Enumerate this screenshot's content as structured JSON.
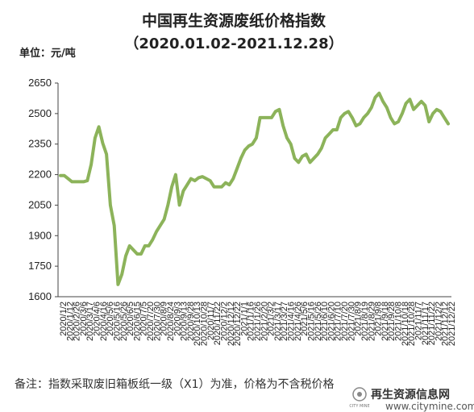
{
  "chart_data": {
    "type": "line",
    "title": "中国再生资源废纸价格指数",
    "subtitle": "（2020.01.02-2021.12.28）",
    "unit_label": "单位：元/吨",
    "ylim": [
      1600,
      2650
    ],
    "yticks": [
      1600,
      1750,
      1900,
      2050,
      2200,
      2350,
      2500,
      2650
    ],
    "grid": false,
    "legend": "none",
    "line_color": "#8cb35a",
    "x_tick_labels": [
      "2020/1/2",
      "2020/1/12",
      "2020/2/26",
      "2020/3/6",
      "2020/3/17",
      "2020/4/6",
      "2020/4/16",
      "2020/5/6",
      "2020/5/16",
      "2020/5/26",
      "2020/6/5",
      "2020/6/15",
      "2020/7/5",
      "2020/7/20",
      "2020/7/30",
      "2020/8/9",
      "2020/8/24",
      "2020/9/3",
      "2020/9/13",
      "2020/9/28",
      "2020/10/13",
      "2020/10/28",
      "2020/11/7",
      "2020/11/22",
      "2020/12/2",
      "2020/12/12",
      "2020/12/22",
      "2021/1/1",
      "2021/1/16",
      "2021/1/26",
      "2021/2/20",
      "2021/3/2",
      "2021/3/17",
      "2021/3/27",
      "2021/4/16",
      "2021/4/26",
      "2021/5/6",
      "2021/5/16",
      "2021/5/26",
      "2021/6/10",
      "2021/6/20",
      "2021/7/10",
      "2021/7/20",
      "2021/7/30",
      "2021/8/9",
      "2021/8/19",
      "2021/8/29",
      "2021/9/8",
      "2021/9/18",
      "2021/9/28",
      "2021/10/8",
      "2021/10/18",
      "2021/10/28",
      "2021/11/7",
      "2021/11/17",
      "2021/11/22",
      "2021/12/2",
      "2021/12/12",
      "2021/12/22"
    ],
    "series": [
      {
        "values": [
          2195,
          2195,
          2180,
          2165,
          2165,
          2165,
          2165,
          2170,
          2250,
          2380,
          2435,
          2355,
          2300,
          2050,
          1950,
          1660,
          1710,
          1800,
          1850,
          1830,
          1810,
          1810,
          1850,
          1850,
          1880,
          1920,
          1950,
          1980,
          2050,
          2140,
          2200,
          2050,
          2120,
          2150,
          2180,
          2170,
          2185,
          2190,
          2180,
          2170,
          2140,
          2140,
          2140,
          2160,
          2150,
          2180,
          2230,
          2280,
          2320,
          2340,
          2350,
          2380,
          2480,
          2480,
          2480,
          2480,
          2510,
          2520,
          2440,
          2380,
          2350,
          2280,
          2260,
          2290,
          2300,
          2260,
          2280,
          2300,
          2330,
          2380,
          2400,
          2420,
          2420,
          2480,
          2500,
          2510,
          2480,
          2440,
          2450,
          2480,
          2500,
          2530,
          2580,
          2600,
          2560,
          2530,
          2480,
          2450,
          2460,
          2500,
          2550,
          2570,
          2520,
          2540,
          2560,
          2540,
          2460,
          2500,
          2520,
          2510,
          2480,
          2450
        ]
      }
    ]
  },
  "footnote": "备注：指数采取废旧箱板纸一级（X1）为准，价格为不含税价格",
  "watermark": {
    "brand": "再生资源信息网",
    "url": "www.citymine.com",
    "logo_text": "CITY MINE"
  }
}
